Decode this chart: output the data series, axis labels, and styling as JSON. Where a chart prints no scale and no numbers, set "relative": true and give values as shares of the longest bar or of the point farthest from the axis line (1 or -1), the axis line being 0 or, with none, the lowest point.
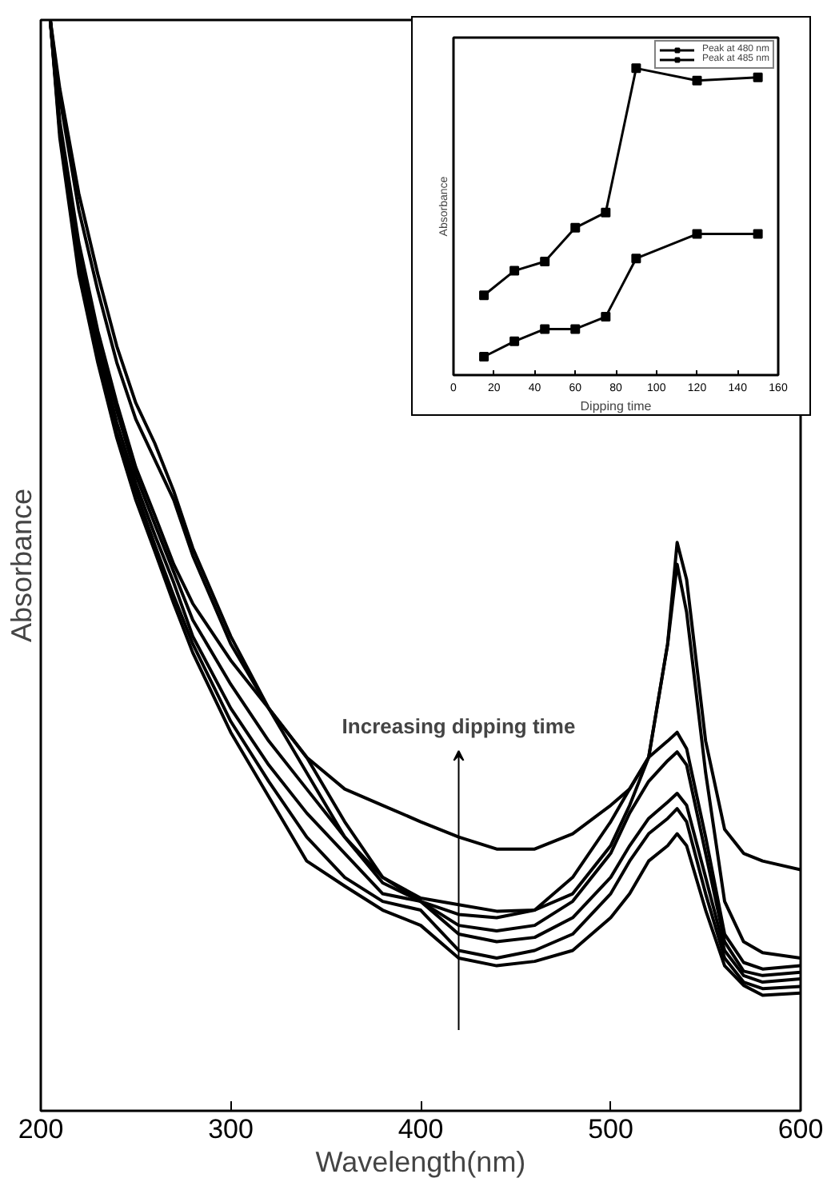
{
  "chart_data": [
    {
      "type": "line",
      "relative": true,
      "xlabel": "Wavelength(nm)",
      "ylabel": "Absorbance",
      "xlim": [
        200,
        600
      ],
      "xticks": [
        200,
        300,
        400,
        500,
        600
      ],
      "tick_labels": "x",
      "grid": false,
      "legend": false,
      "marker": "none",
      "line_style": "solid",
      "x": [
        205,
        210,
        220,
        230,
        240,
        250,
        260,
        270,
        280,
        300,
        320,
        340,
        360,
        380,
        400,
        420,
        440,
        460,
        480,
        500,
        510,
        520,
        530,
        535,
        540,
        550,
        560,
        570,
        580,
        600
      ],
      "annotations": [
        "Increasing dipping time"
      ],
      "series": [
        {
          "color": "#000000",
          "values": [
            1.0,
            0.929,
            0.826,
            0.752,
            0.686,
            0.634,
            0.597,
            0.56,
            0.509,
            0.428,
            0.369,
            0.324,
            0.295,
            0.28,
            0.265,
            0.251,
            0.24,
            0.24,
            0.254,
            0.28,
            0.295,
            0.324,
            0.428,
            0.521,
            0.487,
            0.339,
            0.258,
            0.236,
            0.229,
            0.221
          ]
        },
        {
          "color": "#000000",
          "values": [
            1.0,
            0.937,
            0.841,
            0.767,
            0.701,
            0.649,
            0.612,
            0.568,
            0.516,
            0.435,
            0.369,
            0.31,
            0.251,
            0.214,
            0.195,
            0.189,
            0.183,
            0.184,
            0.199,
            0.243,
            0.28,
            0.324,
            0.428,
            0.501,
            0.457,
            0.31,
            0.192,
            0.155,
            0.145,
            0.14
          ]
        },
        {
          "color": "#000000",
          "values": [
            1.0,
            0.907,
            0.796,
            0.715,
            0.649,
            0.59,
            0.546,
            0.501,
            0.465,
            0.413,
            0.369,
            0.324,
            0.265,
            0.214,
            0.192,
            0.18,
            0.177,
            0.184,
            0.214,
            0.265,
            0.295,
            0.324,
            0.339,
            0.347,
            0.332,
            0.251,
            0.162,
            0.136,
            0.13,
            0.133
          ]
        },
        {
          "color": "#000000",
          "values": [
            1.0,
            0.903,
            0.789,
            0.708,
            0.642,
            0.583,
            0.538,
            0.494,
            0.45,
            0.391,
            0.339,
            0.295,
            0.251,
            0.209,
            0.192,
            0.17,
            0.165,
            0.17,
            0.192,
            0.236,
            0.273,
            0.302,
            0.321,
            0.329,
            0.317,
            0.236,
            0.155,
            0.128,
            0.124,
            0.127
          ]
        },
        {
          "color": "#000000",
          "values": [
            1.0,
            0.9,
            0.782,
            0.701,
            0.631,
            0.575,
            0.528,
            0.484,
            0.435,
            0.369,
            0.317,
            0.273,
            0.236,
            0.199,
            0.192,
            0.162,
            0.155,
            0.159,
            0.177,
            0.214,
            0.243,
            0.268,
            0.283,
            0.291,
            0.28,
            0.214,
            0.147,
            0.124,
            0.118,
            0.121
          ]
        },
        {
          "color": "#000000",
          "values": [
            1.0,
            0.897,
            0.774,
            0.693,
            0.622,
            0.568,
            0.519,
            0.472,
            0.428,
            0.357,
            0.302,
            0.251,
            0.214,
            0.192,
            0.184,
            0.147,
            0.14,
            0.147,
            0.162,
            0.199,
            0.229,
            0.254,
            0.268,
            0.277,
            0.265,
            0.199,
            0.14,
            0.118,
            0.112,
            0.114
          ]
        },
        {
          "color": "#000000",
          "values": [
            1.0,
            0.892,
            0.767,
            0.686,
            0.617,
            0.56,
            0.513,
            0.465,
            0.42,
            0.347,
            0.288,
            0.229,
            0.206,
            0.184,
            0.17,
            0.14,
            0.133,
            0.137,
            0.147,
            0.177,
            0.199,
            0.229,
            0.243,
            0.254,
            0.243,
            0.184,
            0.133,
            0.115,
            0.106,
            0.108
          ]
        }
      ]
    },
    {
      "type": "line",
      "relative": true,
      "xlabel": "Dipping time",
      "ylabel": "Absorbance",
      "xlim": [
        0,
        160
      ],
      "xticks": [
        0,
        20,
        40,
        60,
        80,
        100,
        120,
        140,
        160
      ],
      "tick_labels": "x",
      "grid": false,
      "legend": "top right",
      "marker": "square",
      "line_style": "solid",
      "x": [
        15,
        30,
        45,
        60,
        75,
        90,
        120,
        150
      ],
      "series": [
        {
          "name": "Peak at 480 nm",
          "color": "#000000",
          "values": [
            0.26,
            0.34,
            0.37,
            0.48,
            0.53,
            1.0,
            0.96,
            0.97
          ]
        },
        {
          "name": "Peak at 485 nm",
          "color": "#000000",
          "values": [
            0.06,
            0.11,
            0.15,
            0.15,
            0.19,
            0.38,
            0.46,
            0.46
          ]
        }
      ]
    }
  ]
}
